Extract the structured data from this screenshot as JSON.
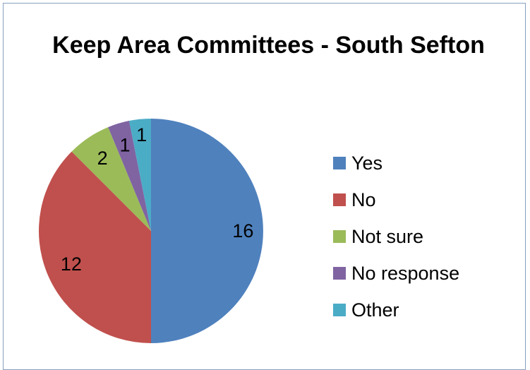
{
  "chart_data": {
    "type": "pie",
    "title": "Keep Area Committees - South Sefton",
    "categories": [
      "Yes",
      "No",
      "Not sure",
      "No response",
      "Other"
    ],
    "values": [
      16,
      12,
      2,
      1,
      1
    ],
    "colors": [
      "#4f81bd",
      "#c0504d",
      "#9bbb59",
      "#8064a2",
      "#4bacc6"
    ],
    "legend_position": "right"
  }
}
